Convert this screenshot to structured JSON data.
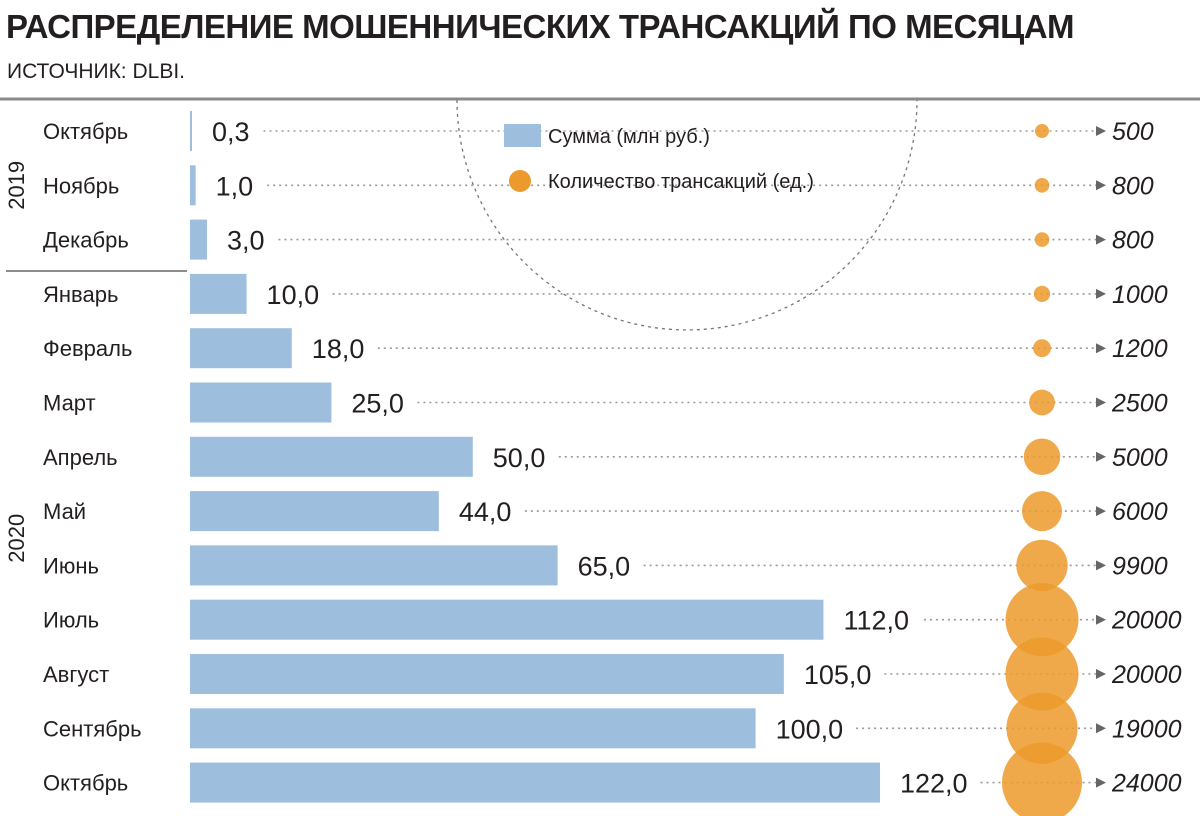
{
  "title": "РАСПРЕДЕЛЕНИЕ МОШЕННИЧЕСКИХ ТРАНСАКЦИЙ ПО МЕСЯЦАМ",
  "source": "ИСТОЧНИК: DLBI.",
  "legend": {
    "sum_label": "Сумма (млн руб.)",
    "count_label": "Количество трансакций (ед.)"
  },
  "year_groups": [
    {
      "label": "2019",
      "months": 3
    },
    {
      "label": "2020",
      "months": 10
    }
  ],
  "colors": {
    "bar": "#9dbfdd",
    "bubble": "#ec9a2c",
    "text": "#231f20",
    "dots": "#9a9a9a"
  },
  "chart_data": {
    "type": "bar",
    "categories": [
      "Октябрь",
      "Ноябрь",
      "Декабрь",
      "Январь",
      "Февраль",
      "Март",
      "Апрель",
      "Май",
      "Июнь",
      "Июль",
      "Август",
      "Сентябрь",
      "Октябрь"
    ],
    "series": [
      {
        "name": "Сумма (млн руб.)",
        "values": [
          0.3,
          1.0,
          3.0,
          10.0,
          18.0,
          25.0,
          50.0,
          44.0,
          65.0,
          112.0,
          105.0,
          100.0,
          122.0
        ],
        "labels": [
          "0,3",
          "1,0",
          "3,0",
          "10,0",
          "18,0",
          "25,0",
          "50,0",
          "44,0",
          "65,0",
          "112,0",
          "105,0",
          "100,0",
          "122,0"
        ]
      },
      {
        "name": "Количество трансакций (ед.)",
        "values": [
          500,
          800,
          800,
          1000,
          1200,
          2500,
          5000,
          6000,
          9900,
          20000,
          20000,
          19000,
          24000
        ],
        "labels": [
          "500",
          "800",
          "800",
          "1000",
          "1200",
          "2500",
          "5000",
          "6000",
          "9900",
          "20000",
          "20000",
          "19000",
          "24000"
        ]
      }
    ],
    "xlim": [
      0,
      122
    ],
    "grid": false,
    "legend_position": "top-center"
  }
}
